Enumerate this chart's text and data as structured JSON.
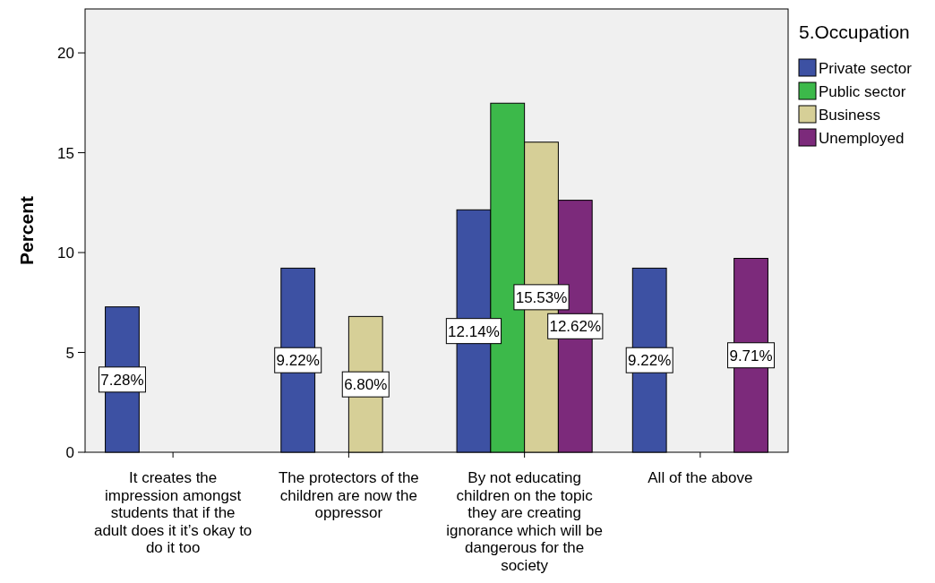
{
  "chart_data": {
    "type": "bar",
    "ylabel": "Percent",
    "legend_title": "5.Occupation",
    "legend": "right",
    "categories": [
      "It creates the impression amongst students that if the adult does it it’s okay to do it too",
      "The protectors of the children are now the oppressor",
      "By not educating children on the topic they are creating ignorance which will be dangerous for the society",
      "All of the above"
    ],
    "series": [
      {
        "name": "Private sector",
        "color": "#3d51a3",
        "values": [
          7.28,
          9.22,
          12.14,
          9.22
        ],
        "value_labels": [
          "7.28%",
          "9.22%",
          "12.14%",
          "9.22%"
        ]
      },
      {
        "name": "Public sector",
        "color": "#3cb94a",
        "values": [
          null,
          null,
          17.48,
          null
        ],
        "value_labels": [
          null,
          null,
          null,
          null
        ]
      },
      {
        "name": "Business",
        "color": "#d6cf97",
        "values": [
          null,
          6.8,
          15.53,
          null
        ],
        "value_labels": [
          null,
          "6.80%",
          "15.53%",
          null
        ]
      },
      {
        "name": "Unemployed",
        "color": "#7c2a7b",
        "values": [
          null,
          null,
          12.62,
          9.71
        ],
        "value_labels": [
          null,
          null,
          "12.62%",
          "9.71%"
        ]
      }
    ],
    "ylim": [
      0,
      22.2
    ],
    "yticks": [
      0,
      5,
      10,
      15,
      20
    ],
    "grid": false
  }
}
